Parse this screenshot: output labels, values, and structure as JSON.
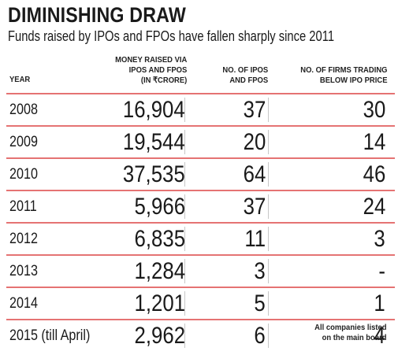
{
  "header": {
    "title": "DIMINISHING DRAW",
    "subtitle": "Funds raised by IPOs and FPOs have fallen sharply since 2011"
  },
  "columns": {
    "year": "YEAR",
    "money_l1": "MONEY RAISED VIA",
    "money_l2": "IPOs AND FPOs",
    "money_l3": "(IN ₹CRORE)",
    "ipos_l1": "NO. OF IPOs",
    "ipos_l2": "AND FPOs",
    "firms_l1": "NO. OF FIRMS TRADING",
    "firms_l2": "BELOW IPO PRICE"
  },
  "rows": [
    {
      "year": "2008",
      "money": "16,904",
      "ipos": "37",
      "firms": "30"
    },
    {
      "year": "2009",
      "money": "19,544",
      "ipos": "20",
      "firms": "14"
    },
    {
      "year": "2010",
      "money": "37,535",
      "ipos": "64",
      "firms": "46"
    },
    {
      "year": "2011",
      "money": "5,966",
      "ipos": "37",
      "firms": "24"
    },
    {
      "year": "2012",
      "money": "6,835",
      "ipos": "11",
      "firms": "3"
    },
    {
      "year": "2013",
      "money": "1,284",
      "ipos": "3",
      "firms": "-"
    },
    {
      "year": "2014",
      "money": "1,201",
      "ipos": "5",
      "firms": "1"
    },
    {
      "year": "2015 (till April)",
      "money": "2,962",
      "ipos": "6",
      "firms": "4"
    }
  ],
  "footnote": {
    "line1": "All companies listed",
    "line2": "on the main board"
  },
  "colors": {
    "rule": "#e57373",
    "separator": "#c7c7c7",
    "text": "#1a1a1a"
  }
}
